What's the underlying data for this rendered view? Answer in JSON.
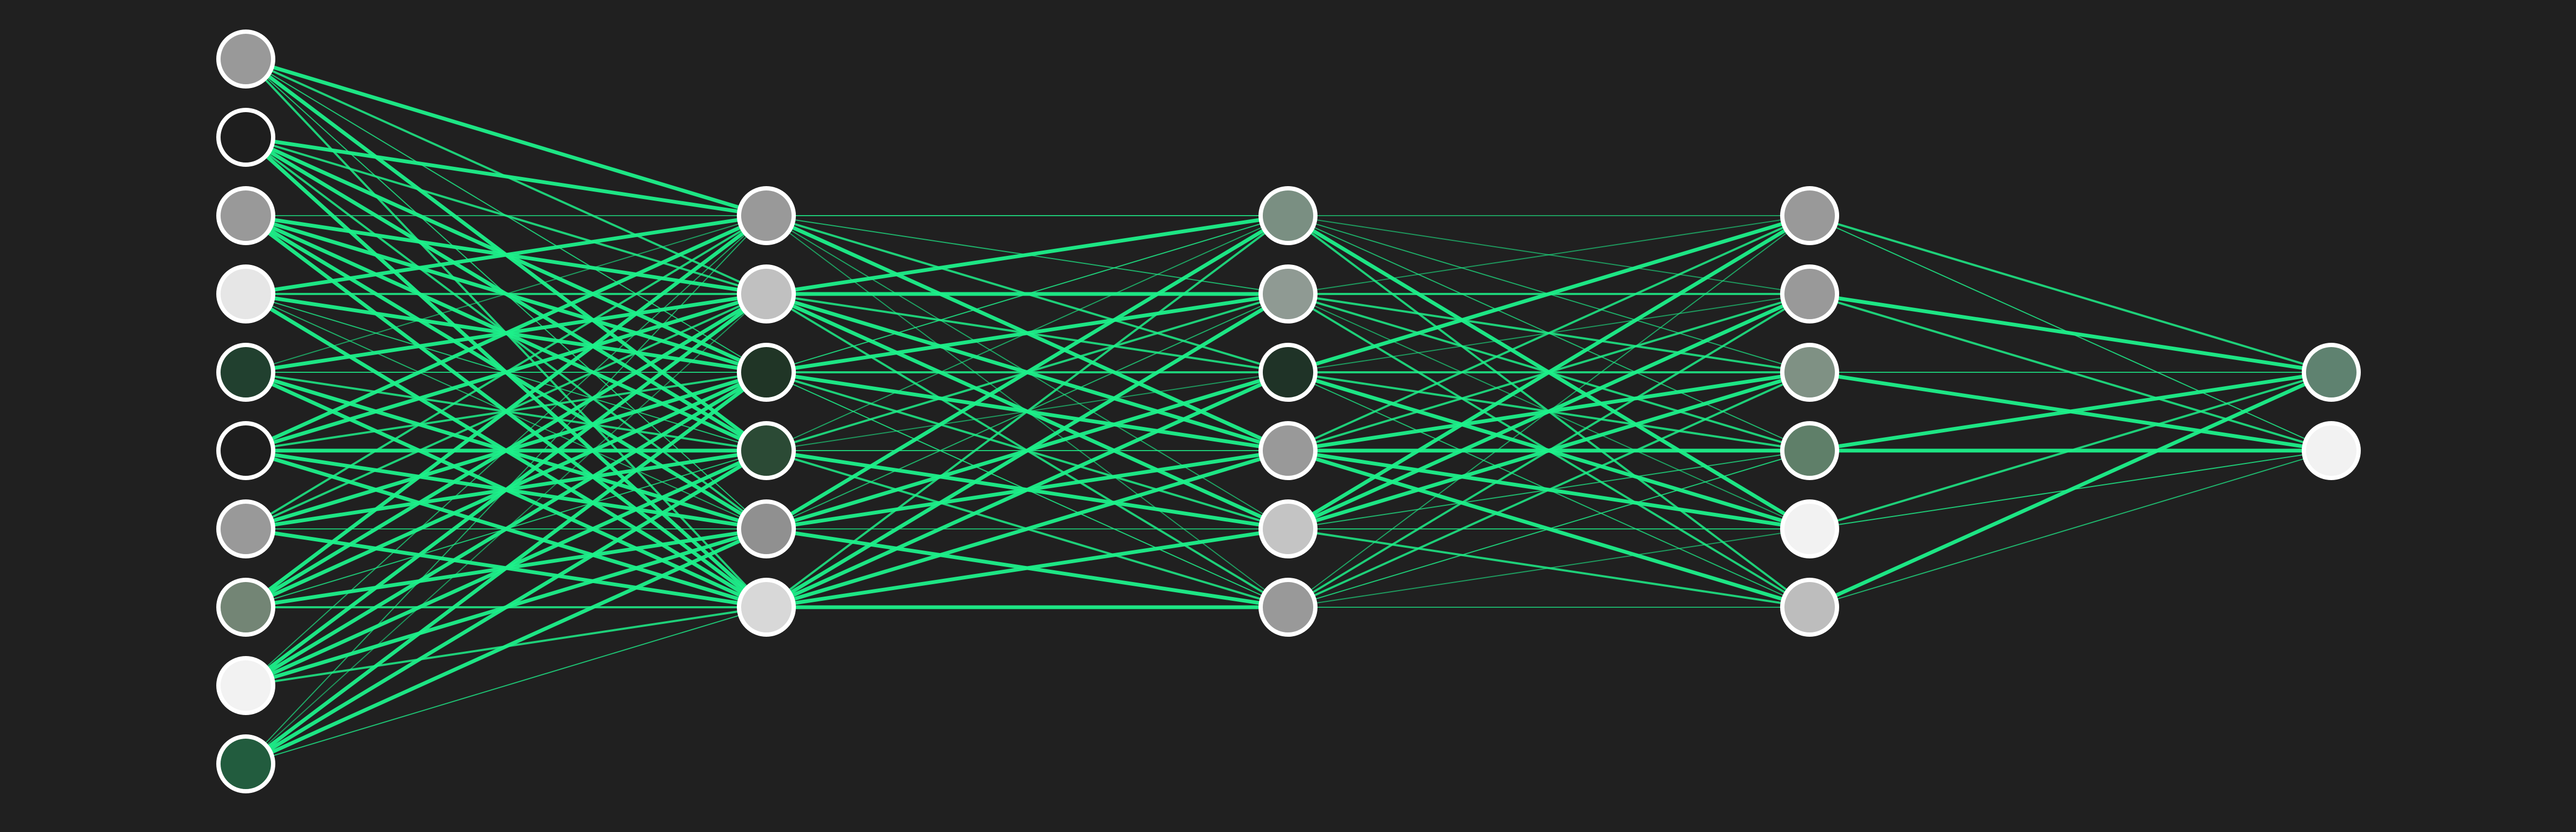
{
  "diagram": {
    "type": "neural-network",
    "colors": {
      "background": "#202020",
      "edge": "#1EF08A",
      "neuron_stroke": "#ffffff"
    },
    "layers": [
      {
        "name": "layer-1",
        "neurons": [
          "#999999",
          "#1e1e1e",
          "#999999",
          "#e6e6e6",
          "#21402f",
          "#1e1e1e",
          "#999999",
          "#738575",
          "#f2f2f2",
          "#225c3e"
        ]
      },
      {
        "name": "layer-2",
        "neurons": [
          "#999999",
          "#c0c0c0",
          "#203526",
          "#2b4a35",
          "#909090",
          "#d8d8d8"
        ]
      },
      {
        "name": "layer-3",
        "neurons": [
          "#7a8f82",
          "#8f9a93",
          "#1f3327",
          "#999999",
          "#c4c4c4",
          "#999999"
        ]
      },
      {
        "name": "layer-4",
        "neurons": [
          "#999999",
          "#999999",
          "#7f9184",
          "#5f7f69",
          "#f2f2f2",
          "#bdbdbd"
        ]
      },
      {
        "name": "layer-5",
        "neurons": [
          "#5f8270",
          "#f2f2f2"
        ]
      }
    ]
  }
}
